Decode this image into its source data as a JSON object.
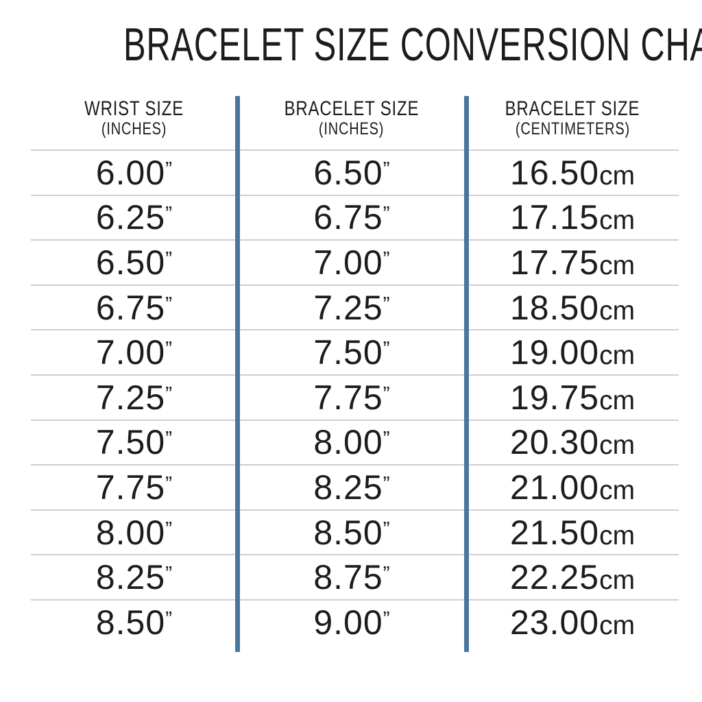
{
  "chart_data": {
    "type": "table",
    "title": "BRACELET SIZE CONVERSION CHART",
    "columns": [
      {
        "key": "wrist-size-inches",
        "label": "WRIST SIZE",
        "unit_label": "(INCHES)",
        "suffix": "”",
        "suffix_style": "inch"
      },
      {
        "key": "bracelet-size-inches",
        "label": "BRACELET SIZE",
        "unit_label": "(INCHES)",
        "suffix": "”",
        "suffix_style": "inch"
      },
      {
        "key": "bracelet-size-centimeters",
        "label": "BRACELET SIZE",
        "unit_label": "(CENTIMETERS)",
        "suffix": "cm",
        "suffix_style": "cm"
      }
    ],
    "rows": [
      [
        "6.00",
        "6.50",
        "16.50"
      ],
      [
        "6.25",
        "6.75",
        "17.15"
      ],
      [
        "6.50",
        "7.00",
        "17.75"
      ],
      [
        "6.75",
        "7.25",
        "18.50"
      ],
      [
        "7.00",
        "7.50",
        "19.00"
      ],
      [
        "7.25",
        "7.75",
        "19.75"
      ],
      [
        "7.50",
        "8.00",
        "20.30"
      ],
      [
        "7.75",
        "8.25",
        "21.00"
      ],
      [
        "8.00",
        "8.50",
        "21.50"
      ],
      [
        "8.25",
        "8.75",
        "22.25"
      ],
      [
        "8.50",
        "9.00",
        "23.00"
      ]
    ],
    "layout": {
      "grid": "horizontal-row-lines",
      "column_dividers": "vertical-blue-bars"
    }
  },
  "colors": {
    "divider_blue": "#4a769e",
    "row_line_gray": "#cfcfcf",
    "text": "#1c1c1c",
    "background": "#ffffff"
  }
}
